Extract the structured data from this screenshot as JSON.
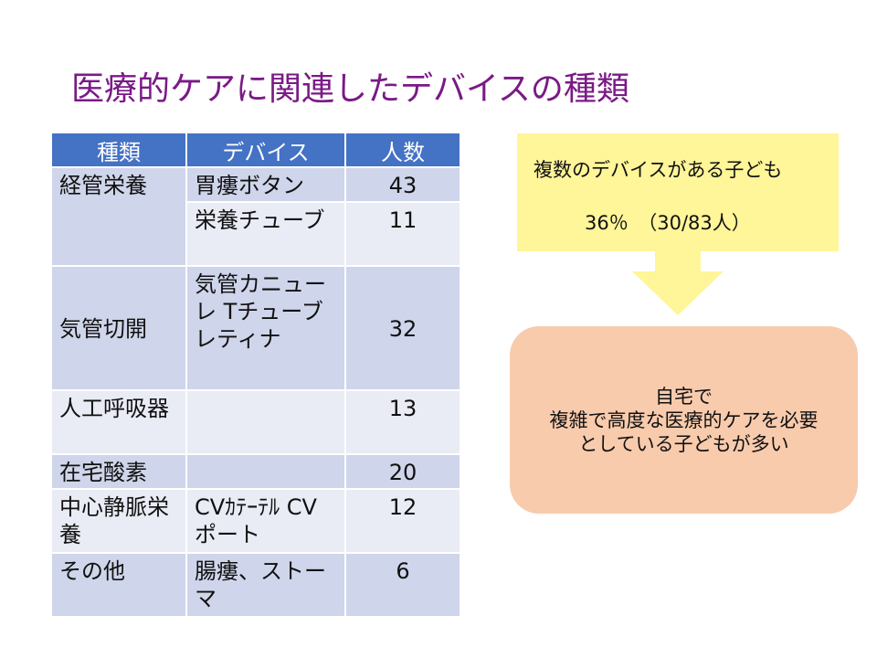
{
  "title": "医療的ケアに関連したデバイスの種類",
  "table": {
    "headers": [
      "種類",
      "デバイス",
      "人数"
    ],
    "rows": [
      {
        "type": "経管栄養",
        "device": "胃瘻ボタン",
        "count": "43"
      },
      {
        "type": "",
        "device": "栄養チューブ",
        "count": "11"
      },
      {
        "type": "気管切開",
        "device": "気管カニューレ Tチューブ レティナ",
        "count": "32"
      },
      {
        "type": "人工呼吸器",
        "device": "",
        "count": "13"
      },
      {
        "type": "在宅酸素",
        "device": "",
        "count": "20"
      },
      {
        "type": "中心静脈栄養",
        "device": "CVｶﾃｰﾃﾙ CVポート",
        "count": "12"
      },
      {
        "type": "その他",
        "device": "腸瘻、ストーマ",
        "count": "6"
      }
    ]
  },
  "callout": {
    "line1": "複数のデバイスがある子ども",
    "line2": "36％　（30/83人）"
  },
  "conclusion": {
    "line1": "自宅で",
    "line2": "複雑で高度な医療的ケアを必要",
    "line3": "としている子どもが多い"
  },
  "colors": {
    "title": "#7a1a86",
    "header_bg": "#4472c4",
    "row_dark": "#cfd5ea",
    "row_light": "#e9ebf5",
    "callout_bg": "#fff599",
    "conclusion_bg": "#f8cbad",
    "arrow": "#fff599"
  }
}
